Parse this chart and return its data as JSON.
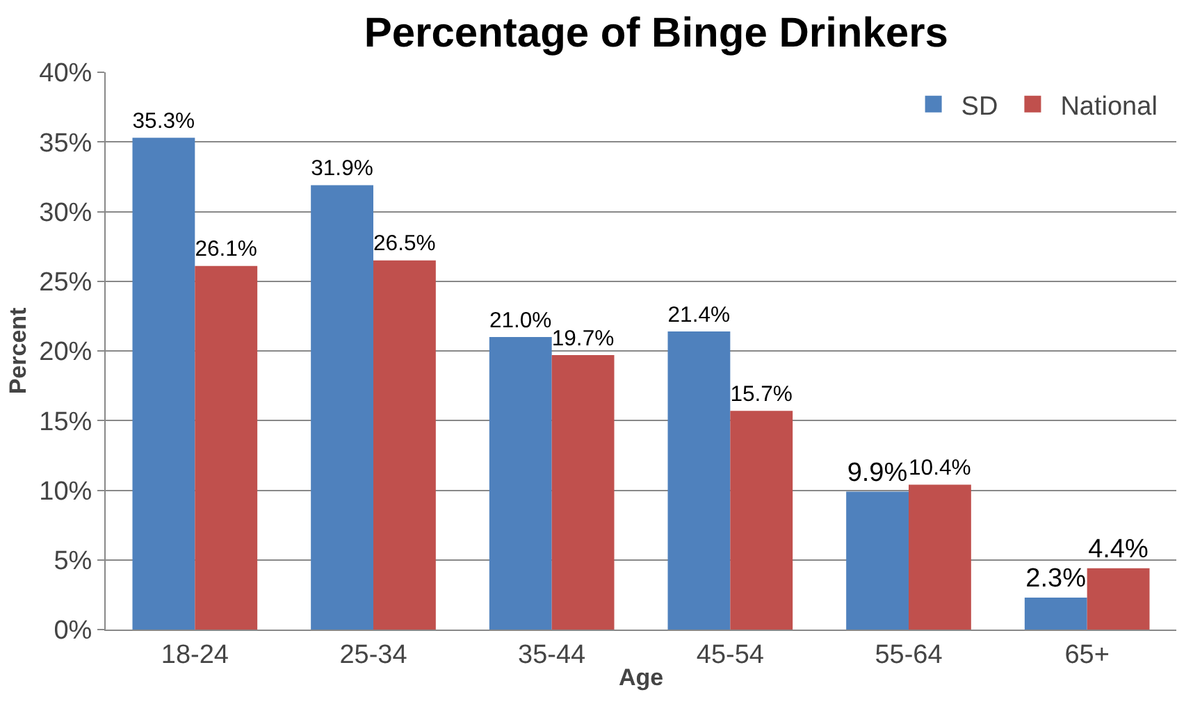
{
  "chart_data": {
    "type": "bar",
    "title": "Percentage of Binge Drinkers",
    "xlabel": "Age",
    "ylabel": "Percent",
    "categories": [
      "18-24",
      "25-34",
      "35-44",
      "45-54",
      "55-64",
      "65+"
    ],
    "series": [
      {
        "name": "SD",
        "color": "#4f81bd",
        "values": [
          35.3,
          31.9,
          21.0,
          21.4,
          9.9,
          2.3
        ],
        "value_labels": [
          "35.3%",
          "31.9%",
          "21.0%",
          "21.4%",
          "9.9%",
          "2.3%"
        ]
      },
      {
        "name": "National",
        "color": "#c0504d",
        "values": [
          26.1,
          26.5,
          19.7,
          15.7,
          10.4,
          4.4
        ],
        "value_labels": [
          "26.1%",
          "26.5%",
          "19.7%",
          "15.7%",
          "10.4%",
          "4.4%"
        ]
      }
    ],
    "ylim": [
      0,
      40
    ],
    "yticks": [
      {
        "value": 0,
        "label": "0%"
      },
      {
        "value": 5,
        "label": "5%"
      },
      {
        "value": 10,
        "label": "10%"
      },
      {
        "value": 15,
        "label": "15%"
      },
      {
        "value": 20,
        "label": "20%"
      },
      {
        "value": 25,
        "label": "25%"
      },
      {
        "value": 30,
        "label": "30%"
      },
      {
        "value": 35,
        "label": "35%"
      },
      {
        "value": 40,
        "label": "40%"
      }
    ],
    "grid": "y",
    "legend": "top right"
  }
}
